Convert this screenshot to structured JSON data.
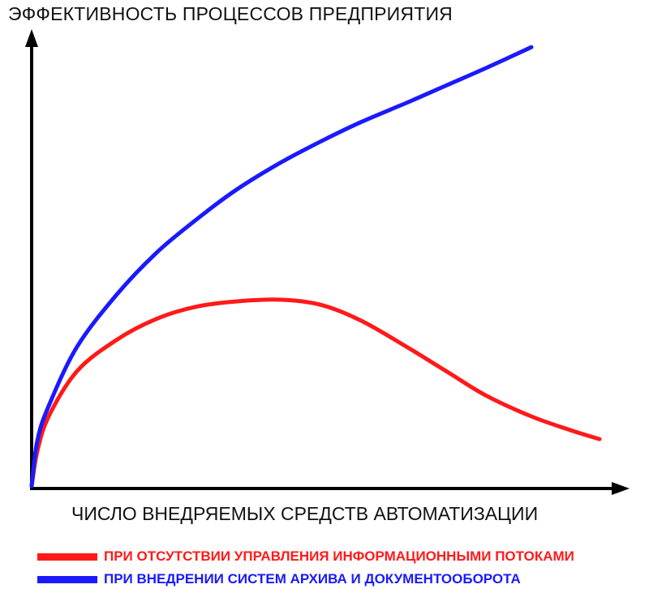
{
  "chart_data": {
    "type": "line",
    "ylabel": "ЭФФЕКТИВНОСТЬ ПРОЦЕССОВ ПРЕДПРИЯТИЯ",
    "xlabel": "ЧИСЛО ВНЕДРЯЕМЫХ СРЕДСТВ АВТОМАТИЗАЦИИ",
    "grid": false,
    "legend_position": "bottom",
    "series": [
      {
        "name": "ПРИ ОТСУТСТВИИ УПРАВЛЕНИЯ ИНФОРМАЦИОННЫМИ ПОТОКАМИ",
        "color": "#ff1a1a",
        "x": [
          0,
          1,
          3,
          8,
          15,
          22,
          29,
          36,
          44,
          51,
          58,
          66,
          73,
          80,
          88,
          95,
          100
        ],
        "y": [
          0,
          10,
          20,
          33,
          42,
          48,
          51.5,
          53,
          53.5,
          52,
          47.5,
          40,
          33,
          26,
          20,
          16,
          13.5
        ]
      },
      {
        "name": "ПРИ ВНЕДРЕНИИ СИСТЕМ АРХИВА И ДОКУМЕНТООБОРОТА",
        "color": "#1a1aff",
        "x": [
          0,
          1,
          3,
          8,
          15,
          22,
          29,
          36,
          44,
          51,
          58,
          66,
          73,
          80,
          88
        ],
        "y": [
          0,
          13,
          23,
          40,
          55,
          67,
          76.5,
          85,
          93,
          99,
          104.5,
          110,
          115,
          120,
          126
        ]
      }
    ]
  }
}
